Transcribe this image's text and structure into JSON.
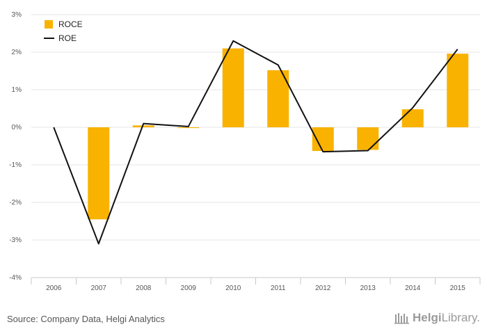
{
  "chart_data": {
    "type": "bar",
    "categories": [
      "2006",
      "2007",
      "2008",
      "2009",
      "2010",
      "2011",
      "2012",
      "2013",
      "2014",
      "2015"
    ],
    "series": [
      {
        "name": "ROCE",
        "kind": "bar",
        "color": "#F9B200",
        "values": [
          0,
          -2.45,
          0.05,
          -0.02,
          2.1,
          1.52,
          -0.63,
          -0.6,
          0.48,
          1.96
        ]
      },
      {
        "name": "ROE",
        "kind": "line",
        "color": "#111111",
        "values": [
          0,
          -3.1,
          0.1,
          0.02,
          2.3,
          1.66,
          -0.65,
          -0.62,
          0.52,
          2.08
        ]
      }
    ],
    "y_ticks": [
      3,
      2,
      1,
      0,
      -1,
      -2,
      -3,
      -4
    ],
    "y_tick_labels": [
      "3%",
      "2%",
      "1%",
      "0%",
      "-1%",
      "-2%",
      "-3%",
      "-4%"
    ],
    "ylim": [
      -4,
      3
    ],
    "grid": true,
    "legend_position": "top-left"
  },
  "footer": {
    "source": "Source: Company Data, Helgi Analytics",
    "brand_bold": "Helgi",
    "brand_regular": "Library."
  }
}
